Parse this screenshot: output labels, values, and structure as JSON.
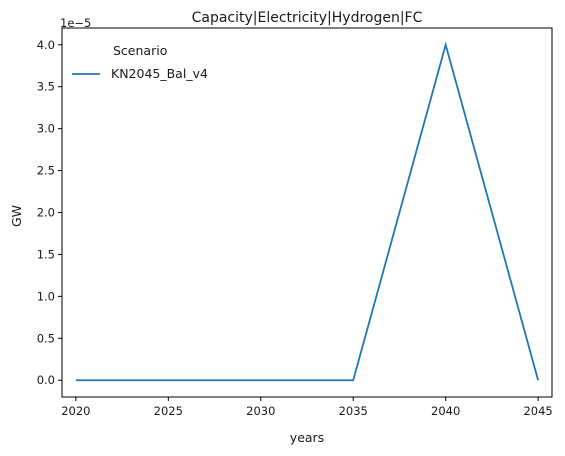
{
  "chart_data": {
    "type": "line",
    "title": "Capacity|Electricity|Hydrogen|FC",
    "xlabel": "years",
    "ylabel": "GW",
    "y_offset_text": "1e−5",
    "x": [
      2020,
      2025,
      2030,
      2035,
      2040,
      2045
    ],
    "x_ticks": [
      "2020",
      "2025",
      "2030",
      "2035",
      "2040",
      "2045"
    ],
    "y_ticks": [
      "0.0",
      "0.5",
      "1.0",
      "1.5",
      "2.0",
      "2.5",
      "3.0",
      "3.5",
      "4.0"
    ],
    "y_tick_values": [
      0.0,
      0.5,
      1.0,
      1.5,
      2.0,
      2.5,
      3.0,
      3.5,
      4.0
    ],
    "xlim": [
      2019.25,
      2045.75
    ],
    "ylim": [
      -0.2,
      4.2
    ],
    "grid": false,
    "legend": {
      "title": "Scenario",
      "placement": "top-left"
    },
    "series": [
      {
        "name": "KN2045_Bal_v4",
        "color": "#1f77b4",
        "values": [
          0.0,
          0.0,
          0.0,
          0.0,
          4.0,
          0.0
        ]
      }
    ]
  }
}
